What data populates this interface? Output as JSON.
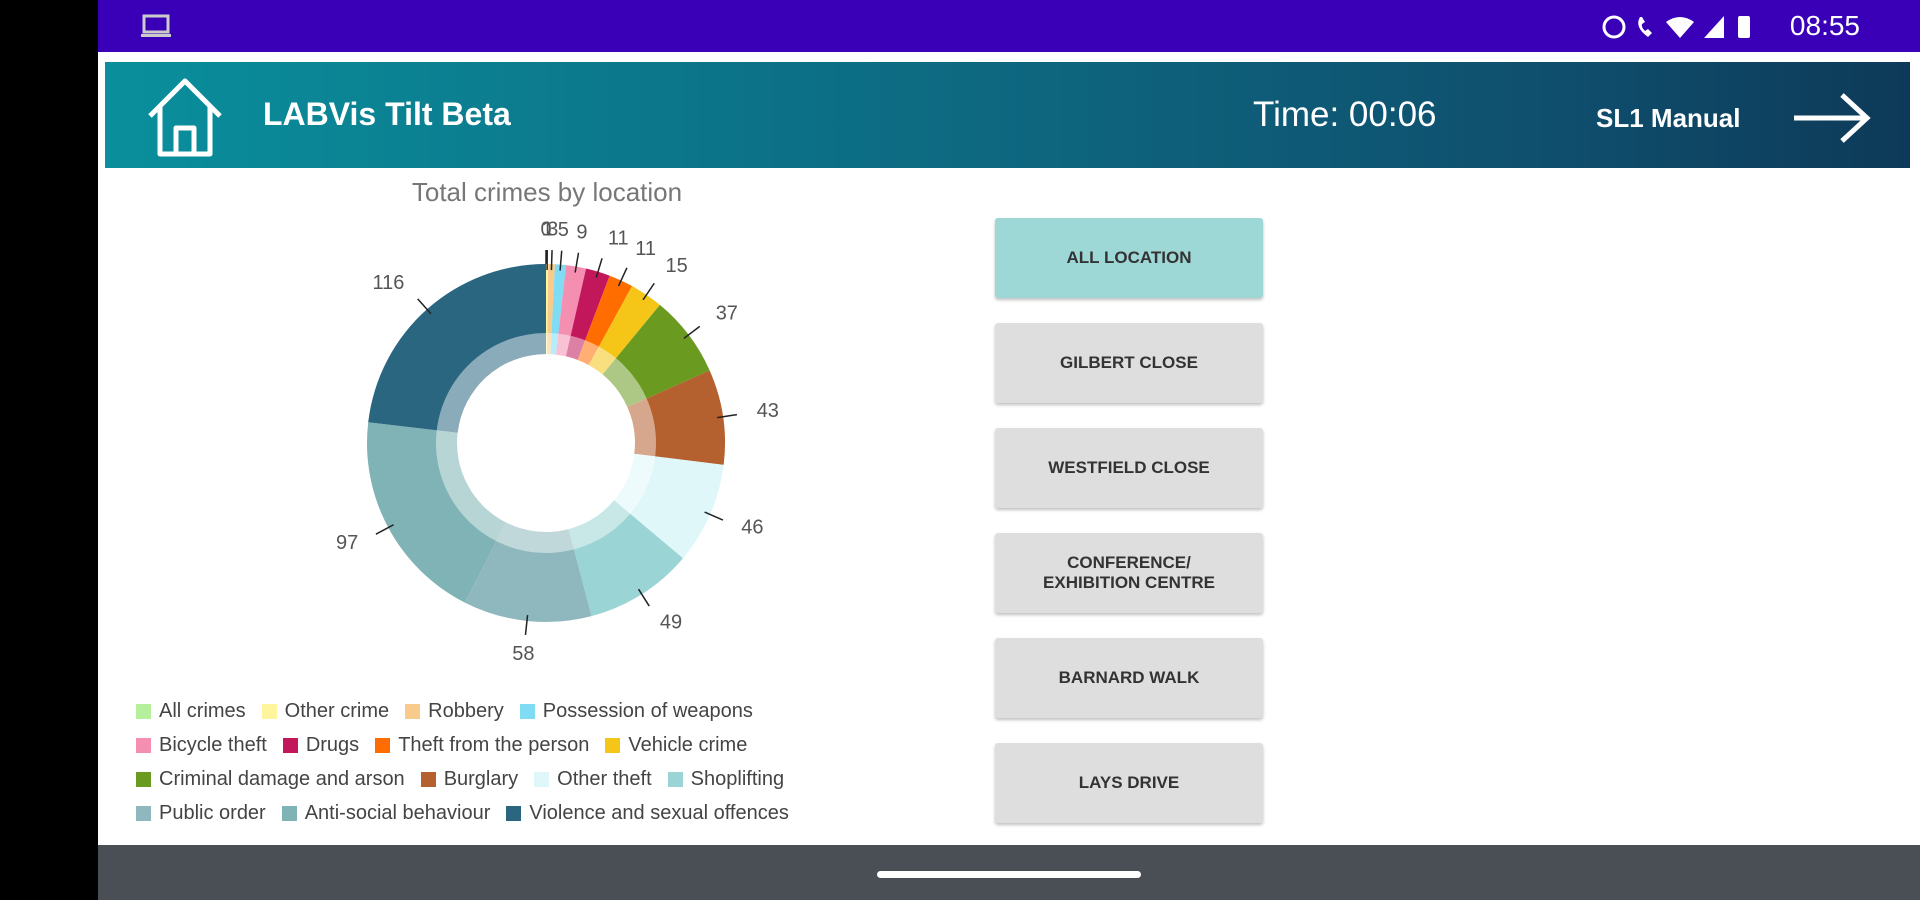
{
  "status_bar": {
    "time": "08:55"
  },
  "header": {
    "title": "LABVis Tilt Beta",
    "timer": "Time: 00:06",
    "manual": "SL1 Manual"
  },
  "chart_data": {
    "type": "pie",
    "donut": true,
    "title": "Total crimes by location",
    "categories": [
      "All crimes",
      "Other crime",
      "Robbery",
      "Possession of weapons",
      "Bicycle theft",
      "Drugs",
      "Theft from the person",
      "Vehicle crime",
      "Criminal damage and arson",
      "Burglary",
      "Other theft",
      "Shoplifting",
      "Public order",
      "Anti-social behaviour",
      "Violence and sexual offences"
    ],
    "values": [
      0,
      1,
      3,
      5,
      9,
      11,
      11,
      15,
      37,
      43,
      46,
      49,
      58,
      97,
      116
    ],
    "colors": [
      "#b6f09c",
      "#fff59d",
      "#f8cb8c",
      "#7fdcf2",
      "#f48fb1",
      "#c2185b",
      "#ff6d00",
      "#f5c518",
      "#6a9a20",
      "#b5602f",
      "#e0f7fa",
      "#9bd4d4",
      "#8fb8be",
      "#7fb3b5",
      "#2a6680"
    ]
  },
  "buttons": [
    "ALL LOCATION",
    "GILBERT CLOSE",
    "WESTFIELD CLOSE",
    "CONFERENCE/ EXHIBITION CENTRE",
    "BARNARD WALK",
    "LAYS DRIVE"
  ]
}
